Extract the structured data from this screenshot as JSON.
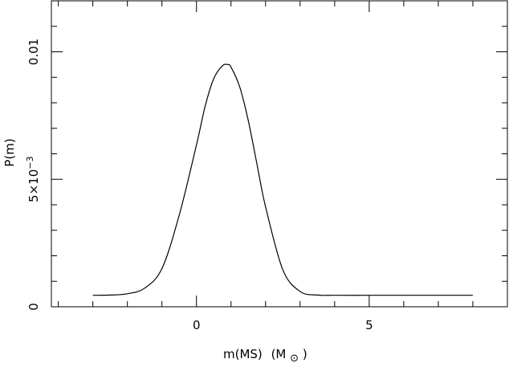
{
  "chart_data": {
    "type": "line",
    "xlabel": "m(MS)",
    "xlabel_unit": "(M",
    "xlabel_unit_close": ")",
    "ylabel": "P(m)",
    "xlim": [
      -4.2,
      9.0
    ],
    "ylim": [
      0,
      0.012
    ],
    "x_ticks": [
      {
        "value": 0,
        "label": "0"
      },
      {
        "value": 5,
        "label": "5"
      }
    ],
    "y_ticks": [
      {
        "value": 0,
        "label": "0"
      },
      {
        "value": 0.005,
        "label": "5×10",
        "exponent": "−3"
      },
      {
        "value": 0.01,
        "label": "0.01"
      }
    ],
    "series": [
      {
        "x": [
          -3.0,
          -2.5,
          -2.0,
          -1.5,
          -1.0,
          -0.5,
          0.0,
          0.25,
          0.5,
          0.75,
          0.9,
          1.0,
          1.25,
          1.5,
          1.75,
          2.0,
          2.5,
          3.0,
          3.5,
          4.0,
          5.0,
          6.0,
          7.0,
          8.0
        ],
        "y": [
          0.00045,
          0.00046,
          0.00051,
          0.00073,
          0.0015,
          0.00359,
          0.00635,
          0.00786,
          0.00895,
          0.00945,
          0.0095,
          0.0094,
          0.00863,
          0.0073,
          0.0056,
          0.00392,
          0.00145,
          0.0006,
          0.00046,
          0.00045,
          0.00045,
          0.00045,
          0.00045,
          0.00045
        ]
      }
    ]
  }
}
